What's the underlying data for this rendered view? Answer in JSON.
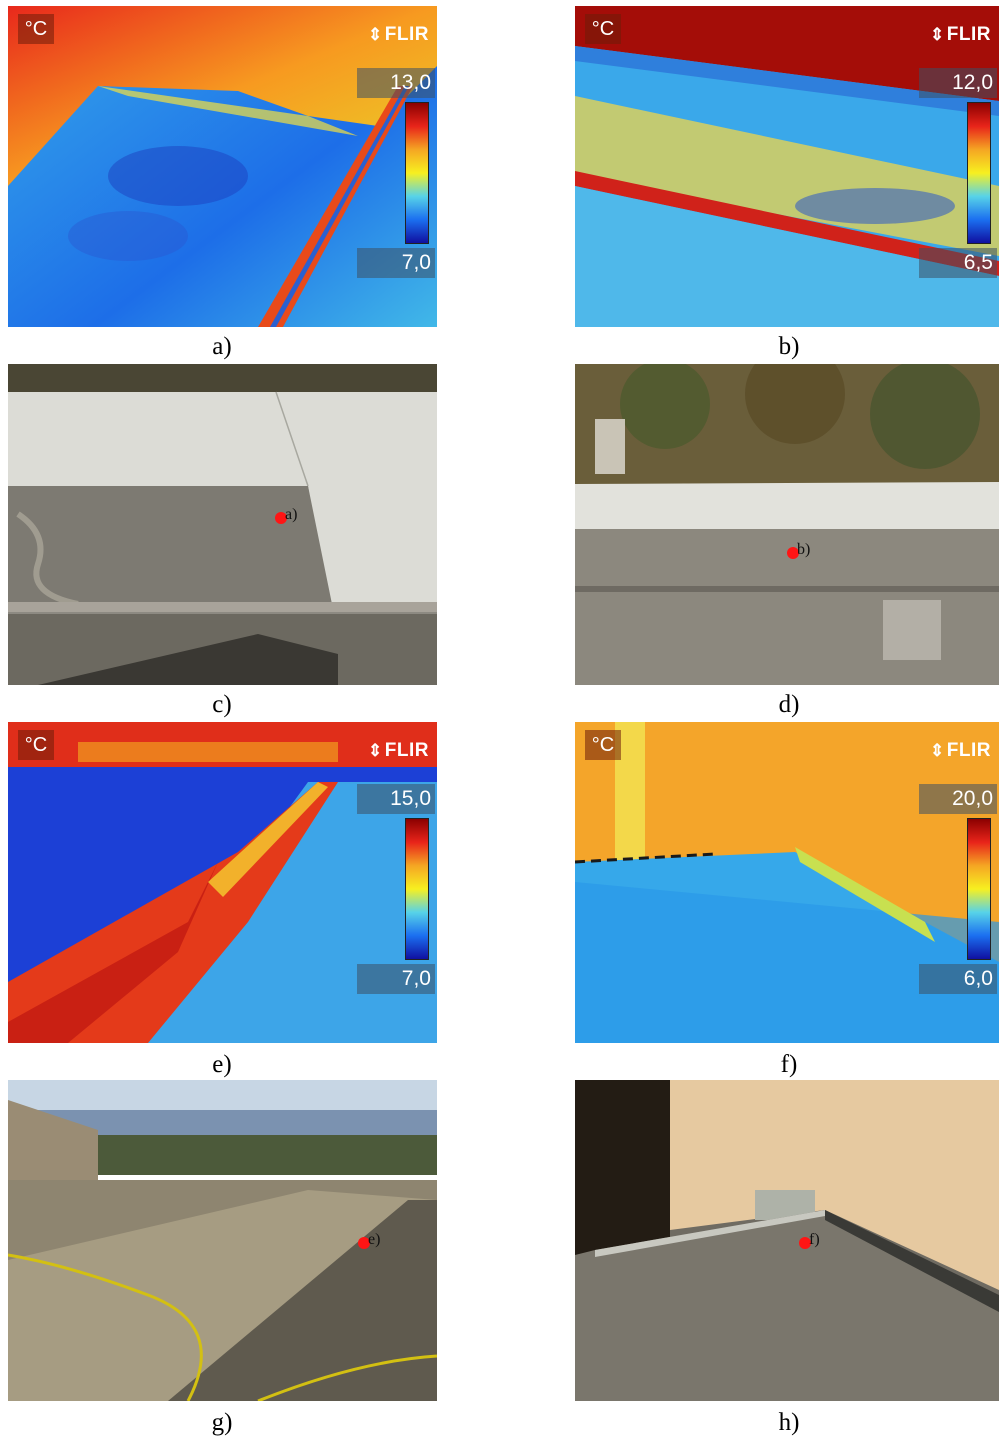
{
  "captions": {
    "a": "a)",
    "b": "b)",
    "c": "c)",
    "d": "d)",
    "e": "e)",
    "f": "f)",
    "g": "g)",
    "h": "h)"
  },
  "thermal": {
    "unit": "°C",
    "brand": "FLIR",
    "a": {
      "max": "13,0",
      "min": "7,0"
    },
    "b": {
      "max": "12,0",
      "min": "6,5"
    },
    "e": {
      "max": "15,0",
      "min": "7,0"
    },
    "f": {
      "max": "20,0",
      "min": "6,0"
    }
  },
  "markers": {
    "c": "a)",
    "d": "b)",
    "g": "e)",
    "h": "f)"
  },
  "colors": {
    "marker": "#ff1515"
  }
}
